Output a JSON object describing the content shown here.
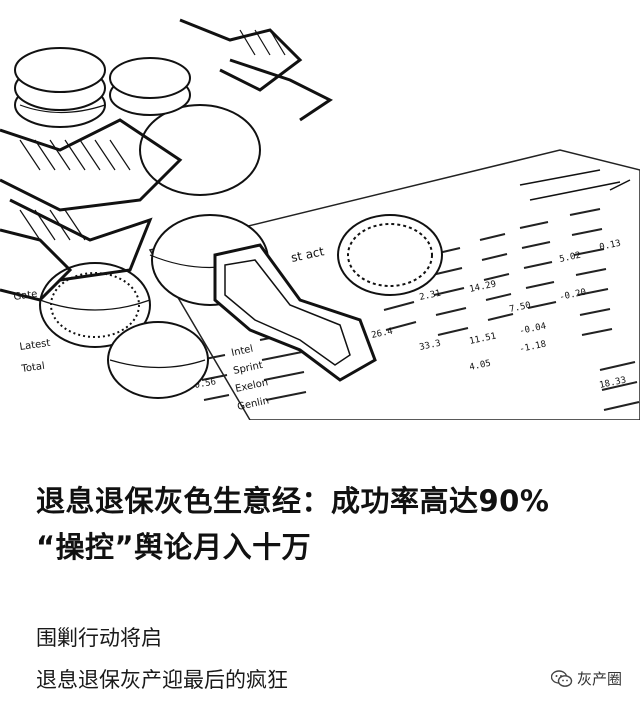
{
  "headline": {
    "line1": "退息退保灰色生意经：成功率高达90%",
    "line2": "“操控”舆论月入十万"
  },
  "subtitle": {
    "line1": "围剿行动将启",
    "line2": "退息退保灰产迎最后的疯狂"
  },
  "brand": {
    "name": "灰产圈",
    "icon": "wechat-bubble-icon"
  },
  "hero": {
    "description_icon": "coins-and-financial-newspaper-image",
    "newspaper_words": [
      "st act",
      "Intel",
      "Sprint",
      "Exelon",
      "Genlin",
      "Gate",
      "Latest",
      "Total"
    ],
    "newspaper_numbers": [
      "2.31",
      "0.56",
      "14.29",
      "7.50",
      "-0.20",
      "26.4",
      "33.3",
      "11.51",
      "-0.04",
      "18.33",
      "5.02",
      "0.13",
      "-1.18",
      "4.05"
    ]
  }
}
